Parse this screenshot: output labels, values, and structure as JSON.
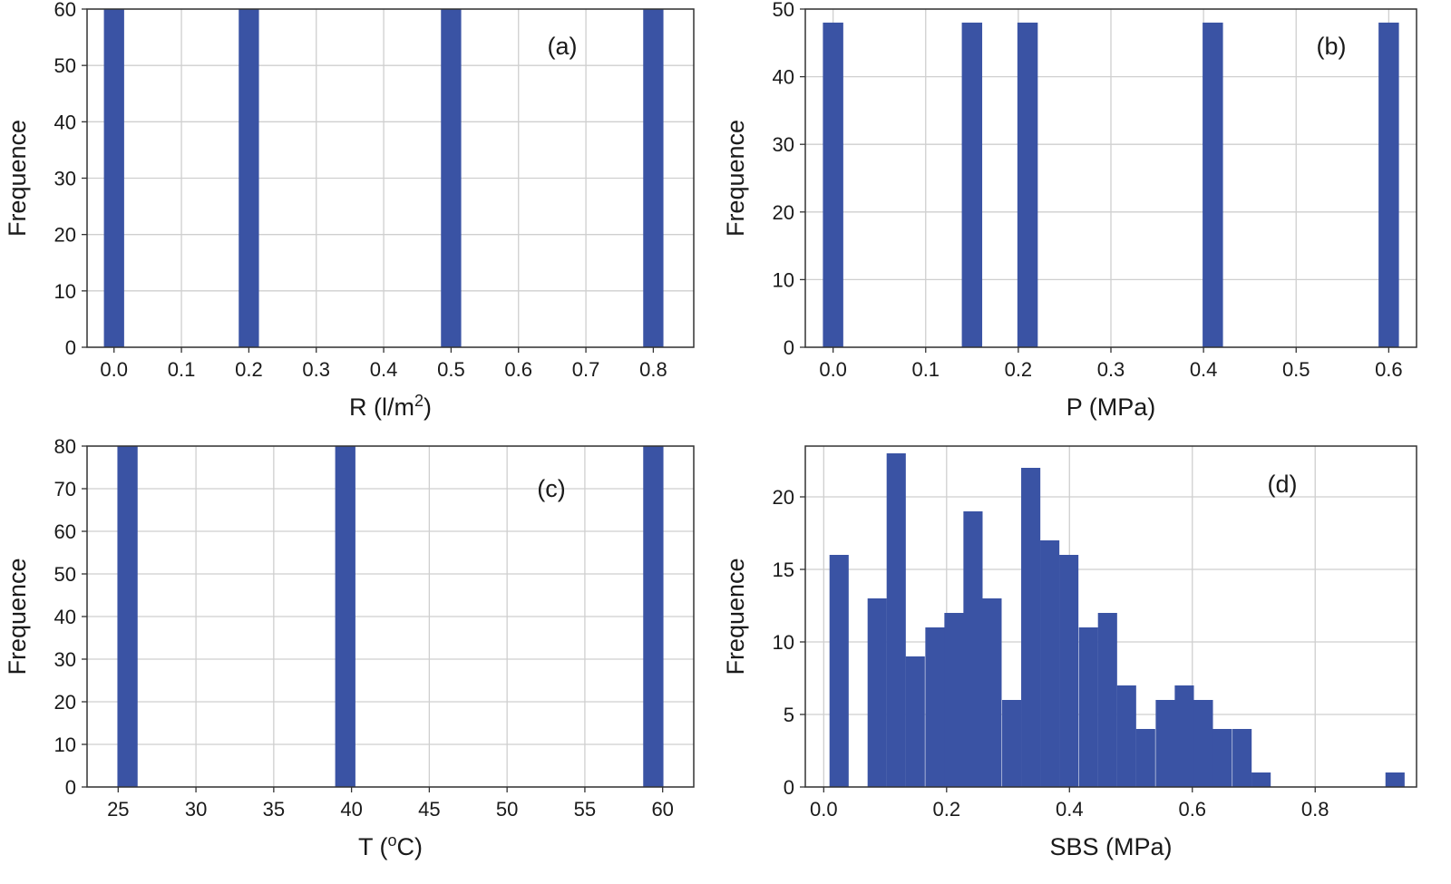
{
  "colors": {
    "bar": "#3a53a4",
    "grid": "#cfcfcf",
    "frame": "#333333"
  },
  "chart_data": [
    {
      "type": "bar",
      "panel_label": "(a)",
      "xlabel": "R (l/m",
      "xlabel_sup": "2",
      "xlabel_tail": ")",
      "ylabel": "Frequence",
      "xlim": [
        -0.04,
        0.86
      ],
      "ylim": [
        0,
        60
      ],
      "xticks": [
        0.0,
        0.1,
        0.2,
        0.3,
        0.4,
        0.5,
        0.6,
        0.7,
        0.8
      ],
      "xtick_labels": [
        "0.0",
        "0.1",
        "0.2",
        "0.3",
        "0.4",
        "0.5",
        "0.6",
        "0.7",
        "0.8"
      ],
      "yticks": [
        0,
        10,
        20,
        30,
        40,
        50,
        60
      ],
      "ytick_labels": [
        "0",
        "10",
        "20",
        "30",
        "40",
        "50",
        "60"
      ],
      "bin_width": 0.03,
      "bins": [
        {
          "x": 0.0,
          "value": 60
        },
        {
          "x": 0.2,
          "value": 60
        },
        {
          "x": 0.5,
          "value": 60
        },
        {
          "x": 0.8,
          "value": 60
        }
      ],
      "grid": true
    },
    {
      "type": "bar",
      "panel_label": "(b)",
      "xlabel": "P (MPa)",
      "xlabel_sup": "",
      "xlabel_tail": "",
      "ylabel": "Frequence",
      "xlim": [
        -0.03,
        0.63
      ],
      "ylim": [
        0,
        50
      ],
      "xticks": [
        0.0,
        0.1,
        0.2,
        0.3,
        0.4,
        0.5,
        0.6
      ],
      "xtick_labels": [
        "0.0",
        "0.1",
        "0.2",
        "0.3",
        "0.4",
        "0.5",
        "0.6"
      ],
      "yticks": [
        0,
        10,
        20,
        30,
        40,
        50
      ],
      "ytick_labels": [
        "0",
        "10",
        "20",
        "30",
        "40",
        "50"
      ],
      "bin_width": 0.022,
      "bins": [
        {
          "x": 0.0,
          "value": 48
        },
        {
          "x": 0.15,
          "value": 48
        },
        {
          "x": 0.21,
          "value": 48
        },
        {
          "x": 0.41,
          "value": 48
        },
        {
          "x": 0.6,
          "value": 48
        }
      ],
      "grid": true
    },
    {
      "type": "bar",
      "panel_label": "(c)",
      "xlabel": "T (",
      "xlabel_sup": "o",
      "xlabel_tail": "C)",
      "ylabel": "Frequence",
      "xlim": [
        23.0,
        62.0
      ],
      "ylim": [
        0,
        80
      ],
      "xticks": [
        25,
        30,
        35,
        40,
        45,
        50,
        55,
        60
      ],
      "xtick_labels": [
        "25",
        "30",
        "35",
        "40",
        "45",
        "50",
        "55",
        "60"
      ],
      "yticks": [
        0,
        10,
        20,
        30,
        40,
        50,
        60,
        70,
        80
      ],
      "ytick_labels": [
        "0",
        "10",
        "20",
        "30",
        "40",
        "50",
        "60",
        "70",
        "80"
      ],
      "bin_width": 1.3,
      "bins": [
        {
          "x": 25.6,
          "value": 80
        },
        {
          "x": 39.6,
          "value": 80
        },
        {
          "x": 59.4,
          "value": 80
        }
      ],
      "grid": true
    },
    {
      "type": "bar",
      "panel_label": "(d)",
      "xlabel": "SBS (MPa)",
      "xlabel_sup": "",
      "xlabel_tail": "",
      "ylabel": "Frequence",
      "xlim": [
        -0.03,
        0.965
      ],
      "ylim": [
        0,
        23.5
      ],
      "xticks": [
        0.0,
        0.2,
        0.4,
        0.6,
        0.8
      ],
      "xtick_labels": [
        "0.0",
        "0.2",
        "0.4",
        "0.6",
        "0.8"
      ],
      "yticks": [
        0,
        5,
        10,
        15,
        20
      ],
      "ytick_labels": [
        "0",
        "5",
        "10",
        "15",
        "20"
      ],
      "bin_width": 0.0312,
      "bins": [
        {
          "x": 0.025,
          "value": 16
        },
        {
          "x": 0.056,
          "value": 0
        },
        {
          "x": 0.087,
          "value": 13
        },
        {
          "x": 0.118,
          "value": 23
        },
        {
          "x": 0.149,
          "value": 9
        },
        {
          "x": 0.181,
          "value": 11
        },
        {
          "x": 0.212,
          "value": 12
        },
        {
          "x": 0.243,
          "value": 19
        },
        {
          "x": 0.274,
          "value": 13
        },
        {
          "x": 0.306,
          "value": 6
        },
        {
          "x": 0.337,
          "value": 22
        },
        {
          "x": 0.368,
          "value": 17
        },
        {
          "x": 0.399,
          "value": 16
        },
        {
          "x": 0.431,
          "value": 11
        },
        {
          "x": 0.462,
          "value": 12
        },
        {
          "x": 0.493,
          "value": 7
        },
        {
          "x": 0.524,
          "value": 4
        },
        {
          "x": 0.556,
          "value": 6
        },
        {
          "x": 0.587,
          "value": 7
        },
        {
          "x": 0.618,
          "value": 6
        },
        {
          "x": 0.649,
          "value": 4
        },
        {
          "x": 0.681,
          "value": 4
        },
        {
          "x": 0.712,
          "value": 1
        },
        {
          "x": 0.743,
          "value": 0
        },
        {
          "x": 0.774,
          "value": 0
        },
        {
          "x": 0.806,
          "value": 0
        },
        {
          "x": 0.837,
          "value": 0
        },
        {
          "x": 0.868,
          "value": 0
        },
        {
          "x": 0.899,
          "value": 0
        },
        {
          "x": 0.93,
          "value": 1
        }
      ],
      "grid": true
    }
  ]
}
